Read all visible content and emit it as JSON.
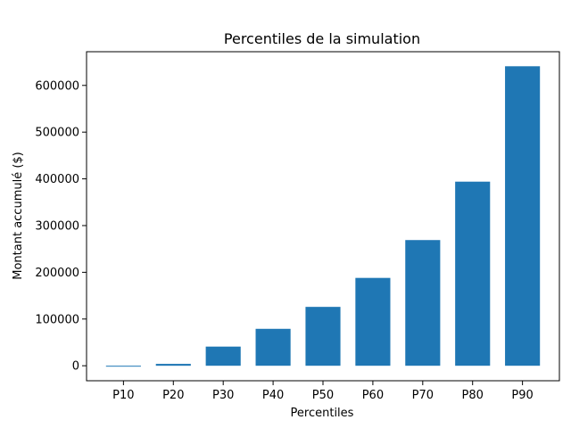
{
  "chart_data": {
    "type": "bar",
    "title": "Percentiles de la simulation",
    "xlabel": "Percentiles",
    "ylabel": "Montant accumulé ($)",
    "categories": [
      "P10",
      "P20",
      "P30",
      "P40",
      "P50",
      "P60",
      "P70",
      "P80",
      "P90"
    ],
    "values": [
      -1000,
      4000,
      41000,
      79000,
      126000,
      188000,
      269000,
      394000,
      641000
    ],
    "ylim": [
      -32100,
      672100
    ],
    "yticks": [
      0,
      100000,
      200000,
      300000,
      400000,
      500000,
      600000
    ],
    "ytick_labels": [
      "0",
      "100000",
      "200000",
      "300000",
      "400000",
      "500000",
      "600000"
    ],
    "bar_color": "#1f77b4",
    "grid": false,
    "legend": "none"
  }
}
